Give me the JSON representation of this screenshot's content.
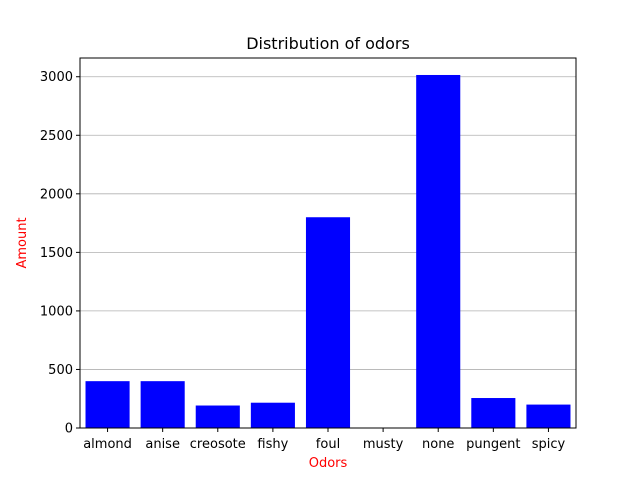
{
  "chart_data": {
    "type": "bar",
    "title": "Distribution of odors",
    "xlabel": "Odors",
    "ylabel": "Amount",
    "categories": [
      "almond",
      "anise",
      "creosote",
      "fishy",
      "foul",
      "musty",
      "none",
      "pungent",
      "spicy"
    ],
    "values": [
      400,
      400,
      192,
      216,
      1800,
      0,
      3015,
      256,
      200
    ],
    "ylim": [
      0,
      3160
    ],
    "yticks": [
      0,
      500,
      1000,
      1500,
      2000,
      2500,
      3000
    ],
    "grid": "y-major",
    "colors": {
      "bar": "#0000ff",
      "axis_label": "#ff0000",
      "grid": "#b0b0b0"
    }
  }
}
